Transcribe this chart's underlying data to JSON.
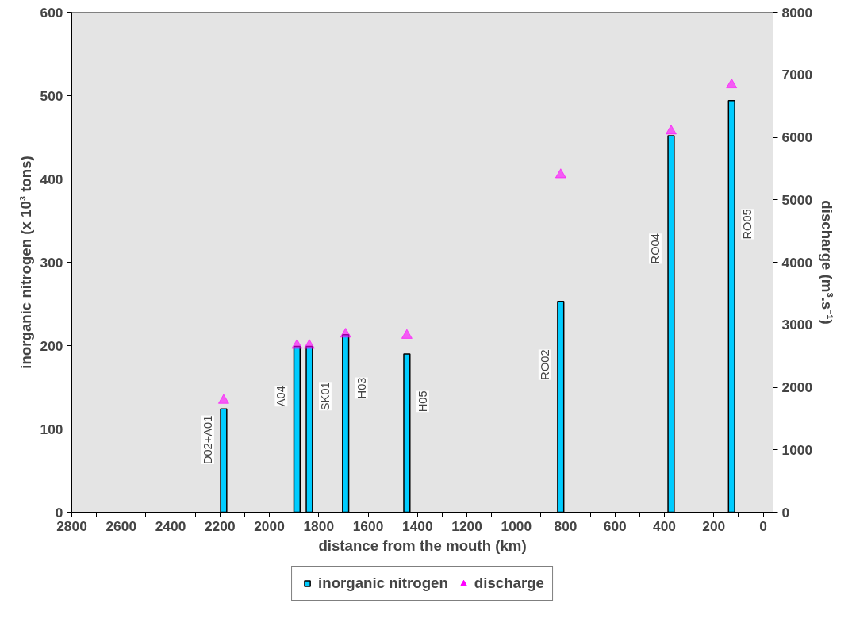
{
  "chart_data": {
    "type": "bar",
    "xlabel": "distance from the mouth (km)",
    "ylabel": "inorganic nitrogen (x 10³ tons)",
    "y2label": "discharge (m³.s⁻¹)",
    "x": [
      2185,
      1888,
      1838,
      1691,
      1443,
      820,
      373,
      128
    ],
    "series": [
      {
        "name": "inorganic nitrogen",
        "color": "#00ccff",
        "values": [
          124,
          199,
          199,
          213,
          190,
          253,
          452,
          494
        ]
      },
      {
        "name": "discharge",
        "type": "scatter",
        "axis": "y2",
        "color": "#ff00ff",
        "values": [
          1790,
          2670,
          2670,
          2850,
          2830,
          5400,
          6100,
          6840
        ]
      }
    ],
    "marker": "triangle",
    "legend": "bottom",
    "grid": false,
    "xlim": [
      2800,
      -40
    ],
    "xticks": [
      2800,
      {
        "value": 2700,
        "label": null
      },
      2600,
      {
        "value": 2500,
        "label": null
      },
      2400,
      {
        "value": 2300,
        "label": null
      },
      2200,
      {
        "value": 2100,
        "label": null
      },
      2000,
      {
        "value": 1900,
        "label": null
      },
      1800,
      {
        "value": 1700,
        "label": null
      },
      1600,
      {
        "value": 1500,
        "label": null
      },
      1400,
      {
        "value": 1300,
        "label": null
      },
      1200,
      {
        "value": 1100,
        "label": null
      },
      1000,
      {
        "value": 900,
        "label": null
      },
      800,
      {
        "value": 700,
        "label": null
      },
      600,
      {
        "value": 500,
        "label": null
      },
      400,
      {
        "value": 300,
        "label": null
      },
      200,
      {
        "value": 100,
        "label": null
      },
      0
    ],
    "ylim": [
      0,
      600
    ],
    "yticks": [
      0,
      100,
      200,
      300,
      400,
      500,
      600
    ],
    "y2lim": [
      0,
      8000
    ],
    "y2ticks": [
      0,
      1000,
      2000,
      3000,
      4000,
      5000,
      6000,
      7000,
      8000
    ],
    "annotations": [
      "D02+A01",
      "A04",
      "SK01",
      "H03",
      "H05",
      "RO02",
      "RO04",
      "RO05"
    ]
  }
}
